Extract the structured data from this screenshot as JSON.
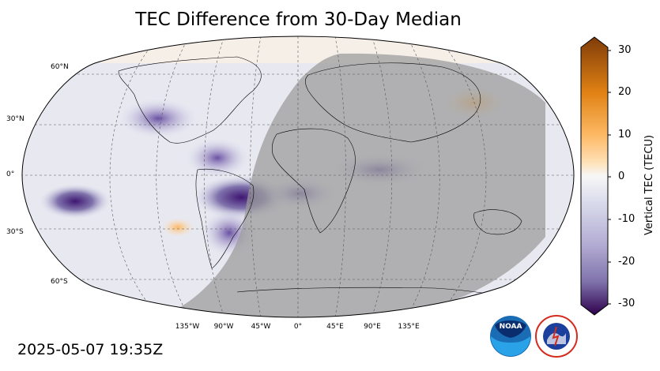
{
  "title": "TEC Difference from 30-Day Median",
  "timestamp": "2025-05-07 19:35Z",
  "latitude_labels": [
    "60°N",
    "30°N",
    "0°",
    "30°S",
    "60°S"
  ],
  "longitude_labels": [
    "135°W",
    "90°W",
    "45°W",
    "0°",
    "45°E",
    "90°E",
    "135°E"
  ],
  "colorbar": {
    "label": "Vertical TEC (TECU)",
    "ticks": [
      "30",
      "20",
      "10",
      "0",
      "-10",
      "-20",
      "-30"
    ],
    "range": [
      -30,
      30
    ],
    "colors": {
      "max": "#7f3b08",
      "positive": "#fdb863",
      "zero": "#f7f7f7",
      "negative": "#8073ac",
      "min": "#2d004b"
    }
  },
  "map": {
    "projection": "robinson",
    "night_shading": "#9a9a9a",
    "gridlines": "dashed"
  },
  "logos": [
    "noaa-logo",
    "national-weather-service-logo"
  ]
}
